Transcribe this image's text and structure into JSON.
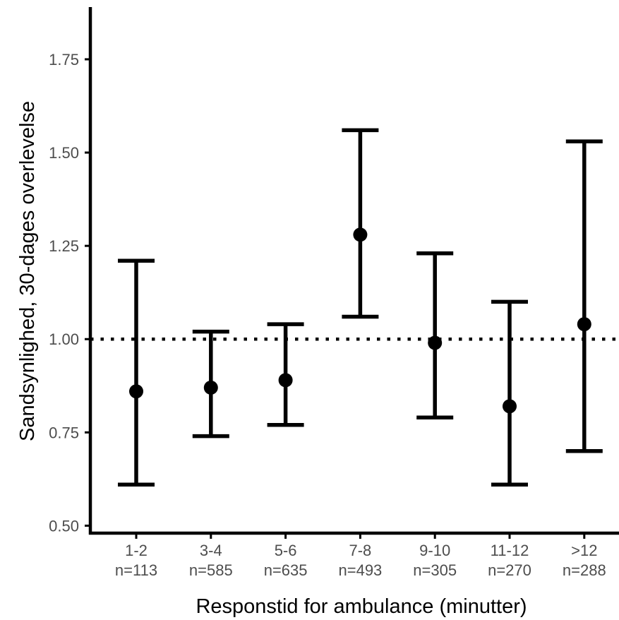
{
  "chart_data": {
    "type": "scatter",
    "subtype": "point-with-error-bars",
    "xlabel": "Responstid for ambulance (minutter)",
    "ylabel": "Sandsynlighed, 30-dages overlevelse",
    "ylim": [
      0.48,
      1.89
    ],
    "y_ticks": [
      "0.50",
      "0.75",
      "1.00",
      "1.25",
      "1.50",
      "1.75"
    ],
    "reference_line": {
      "y": 1.0,
      "style": "dotted"
    },
    "grid": false,
    "color": "#000000",
    "categories": [
      {
        "label": "1-2",
        "n": "n=113",
        "estimate": 0.86,
        "lower": 0.61,
        "upper": 1.21
      },
      {
        "label": "3-4",
        "n": "n=585",
        "estimate": 0.87,
        "lower": 0.74,
        "upper": 1.02
      },
      {
        "label": "5-6",
        "n": "n=635",
        "estimate": 0.89,
        "lower": 0.77,
        "upper": 1.04
      },
      {
        "label": "7-8",
        "n": "n=493",
        "estimate": 1.28,
        "lower": 1.06,
        "upper": 1.56
      },
      {
        "label": "9-10",
        "n": "n=305",
        "estimate": 0.99,
        "lower": 0.79,
        "upper": 1.23
      },
      {
        "label": "11-12",
        "n": "n=270",
        "estimate": 0.82,
        "lower": 0.61,
        "upper": 1.1
      },
      {
        "label": ">12",
        "n": "n=288",
        "estimate": 1.04,
        "lower": 0.7,
        "upper": 1.53
      }
    ]
  }
}
